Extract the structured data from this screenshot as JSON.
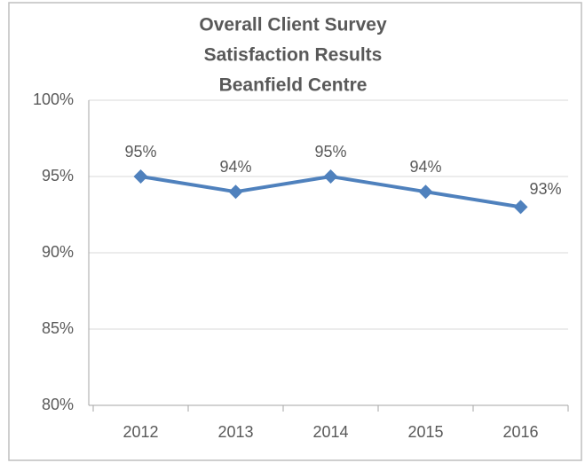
{
  "chart_data": {
    "type": "line",
    "title": [
      "Overall Client Survey",
      "Satisfaction Results",
      "Beanfield Centre"
    ],
    "categories": [
      "2012",
      "2013",
      "2014",
      "2015",
      "2016"
    ],
    "values": [
      95,
      94,
      95,
      94,
      93
    ],
    "value_labels": [
      "95%",
      "94%",
      "95%",
      "94%",
      "93%"
    ],
    "color": "#4f81bd",
    "ylim": [
      80,
      100
    ],
    "yticks": [
      {
        "value": 80,
        "label": "80%"
      },
      {
        "value": 85,
        "label": "85%"
      },
      {
        "value": 90,
        "label": "90%"
      },
      {
        "value": 95,
        "label": "95%"
      },
      {
        "value": 100,
        "label": "100%"
      }
    ],
    "grid": true
  }
}
